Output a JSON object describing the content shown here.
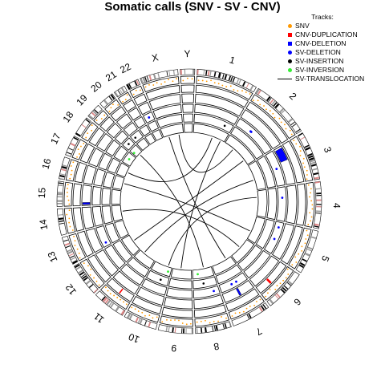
{
  "chart_data": {
    "type": "circos",
    "title": "Somatic calls (SNV - SV - CNV)",
    "legend": {
      "title": "Tracks:",
      "position": "top-right",
      "entries": [
        {
          "label": "SNV",
          "color": "#ff9900",
          "marker": "dot"
        },
        {
          "label": "CNV-DUPLICATION",
          "color": "#ff0000",
          "marker": "square"
        },
        {
          "label": "CNV-DELETION",
          "color": "#0000ff",
          "marker": "square"
        },
        {
          "label": "SV-DELETION",
          "color": "#0000ff",
          "marker": "dot"
        },
        {
          "label": "SV-INSERTION",
          "color": "#000000",
          "marker": "dot"
        },
        {
          "label": "SV-INVERSION",
          "color": "#33ee33",
          "marker": "dot"
        },
        {
          "label": "SV-TRANSLOCATION",
          "color": "#000000",
          "marker": "line"
        }
      ]
    },
    "chromosomes": [
      {
        "name": "1",
        "size": 249
      },
      {
        "name": "2",
        "size": 243
      },
      {
        "name": "3",
        "size": 198
      },
      {
        "name": "4",
        "size": 191
      },
      {
        "name": "5",
        "size": 181
      },
      {
        "name": "6",
        "size": 171
      },
      {
        "name": "7",
        "size": 159
      },
      {
        "name": "8",
        "size": 146
      },
      {
        "name": "9",
        "size": 141
      },
      {
        "name": "10",
        "size": 136
      },
      {
        "name": "11",
        "size": 135
      },
      {
        "name": "12",
        "size": 134
      },
      {
        "name": "13",
        "size": 115
      },
      {
        "name": "14",
        "size": 107
      },
      {
        "name": "15",
        "size": 102
      },
      {
        "name": "16",
        "size": 90
      },
      {
        "name": "17",
        "size": 83
      },
      {
        "name": "18",
        "size": 78
      },
      {
        "name": "19",
        "size": 59
      },
      {
        "name": "20",
        "size": 63
      },
      {
        "name": "21",
        "size": 48
      },
      {
        "name": "22",
        "size": 51
      },
      {
        "name": "X",
        "size": 155
      },
      {
        "name": "Y",
        "size": 59
      }
    ],
    "tracks": [
      "SNV",
      "CNV-DUPLICATION",
      "CNV-DELETION",
      "SV-DELETION",
      "SV-INSERTION",
      "SV-INVERSION"
    ],
    "cnv_deletion": [
      {
        "chr": "3",
        "start": 10,
        "end": 75
      },
      {
        "chr": "15",
        "start": 5,
        "end": 15
      },
      {
        "chr": "7",
        "start": 70,
        "end": 80
      }
    ],
    "cnv_duplication": [
      {
        "chr": "6",
        "start": 100,
        "end": 110
      },
      {
        "chr": "11",
        "start": 60,
        "end": 66
      }
    ],
    "sv_deletion": [
      {
        "chr": "2",
        "pos": 90
      },
      {
        "chr": "2",
        "pos": 95
      },
      {
        "chr": "3",
        "pos": 100
      },
      {
        "chr": "4",
        "pos": 60
      },
      {
        "chr": "5",
        "pos": 30
      },
      {
        "chr": "5",
        "pos": 100
      },
      {
        "chr": "7",
        "pos": 60
      },
      {
        "chr": "7",
        "pos": 90
      },
      {
        "chr": "8",
        "pos": 30
      },
      {
        "chr": "13",
        "pos": 20
      },
      {
        "chr": "22",
        "pos": 25
      }
    ],
    "sv_insertion": [
      {
        "chr": "1",
        "pos": 200
      },
      {
        "chr": "8",
        "pos": 80
      },
      {
        "chr": "10",
        "pos": 50
      },
      {
        "chr": "19",
        "pos": 30
      },
      {
        "chr": "20",
        "pos": 20
      }
    ],
    "sv_inversion": [
      {
        "chr": "8",
        "pos": 110
      },
      {
        "chr": "10",
        "pos": 20
      },
      {
        "chr": "18",
        "pos": 40
      },
      {
        "chr": "19",
        "pos": 10
      }
    ],
    "sv_translocation": [
      {
        "chr1": "1",
        "pos1": 150,
        "chr2": "17",
        "pos2": 40
      },
      {
        "chr1": "1",
        "pos1": 220,
        "chr2": "9",
        "pos2": 80
      },
      {
        "chr1": "2",
        "pos1": 80,
        "chr2": "X",
        "pos2": 120
      },
      {
        "chr1": "3",
        "pos1": 120,
        "chr2": "11",
        "pos2": 100
      },
      {
        "chr1": "4",
        "pos1": 50,
        "chr2": "10",
        "pos2": 30
      },
      {
        "chr1": "5",
        "pos1": 120,
        "chr2": "16",
        "pos2": 50
      },
      {
        "chr1": "6",
        "pos1": 80,
        "chr2": "14",
        "pos2": 60
      },
      {
        "chr1": "7",
        "pos1": 40,
        "chr2": "X",
        "pos2": 40
      },
      {
        "chr1": "8",
        "pos1": 60,
        "chr2": "19",
        "pos2": 30
      },
      {
        "chr1": "2",
        "pos1": 200,
        "chr2": "12",
        "pos2": 80
      }
    ]
  }
}
